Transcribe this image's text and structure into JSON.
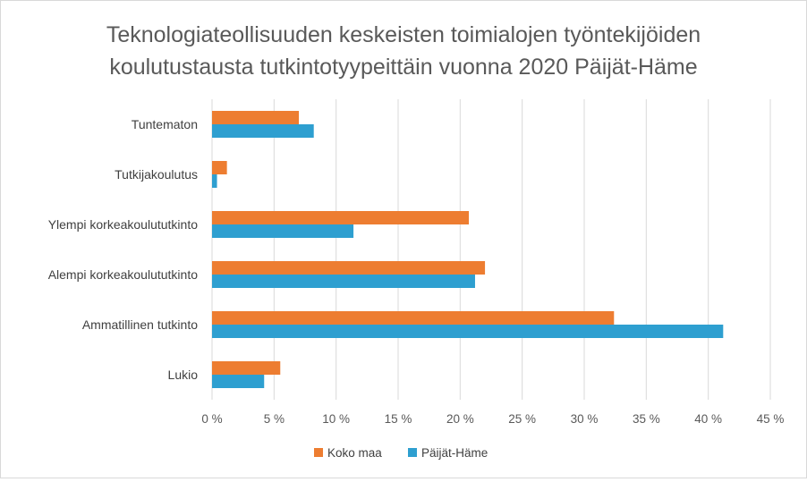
{
  "chart_data": {
    "type": "bar",
    "orientation": "horizontal",
    "title": "Teknologiateollisuuden keskeisten toimialojen työntekijöiden koulutustausta tutkintotyypeittäin vuonna 2020 Päijät-Häme",
    "title_lines": [
      "Teknologiateollisuuden keskeisten toimialojen työntekijöiden",
      "koulutustausta tutkintotyypeittäin vuonna 2020 Päijät-Häme"
    ],
    "categories": [
      "Tuntematon",
      "Tutkijakoulutus",
      "Ylempi korkeakoulututkinto",
      "Alempi korkeakoulututkinto",
      "Ammatillinen tutkinto",
      "Lukio"
    ],
    "series": [
      {
        "name": "Koko maa",
        "color": "#ED7D31",
        "values": [
          7.0,
          1.2,
          20.7,
          22.0,
          32.4,
          5.5
        ]
      },
      {
        "name": "Päijät-Häme",
        "color": "#2E9FD0",
        "values": [
          8.2,
          0.4,
          11.4,
          21.2,
          41.2,
          4.2
        ]
      }
    ],
    "xlim": [
      0,
      45
    ],
    "xticks": [
      0,
      5,
      10,
      15,
      20,
      25,
      30,
      35,
      40,
      45
    ],
    "xtick_labels": [
      "0 %",
      "5 %",
      "10 %",
      "15 %",
      "20 %",
      "25 %",
      "30 %",
      "35 %",
      "40 %",
      "45 %"
    ],
    "grid": "vertical",
    "legend_position": "bottom",
    "xlabel": "",
    "ylabel": ""
  }
}
